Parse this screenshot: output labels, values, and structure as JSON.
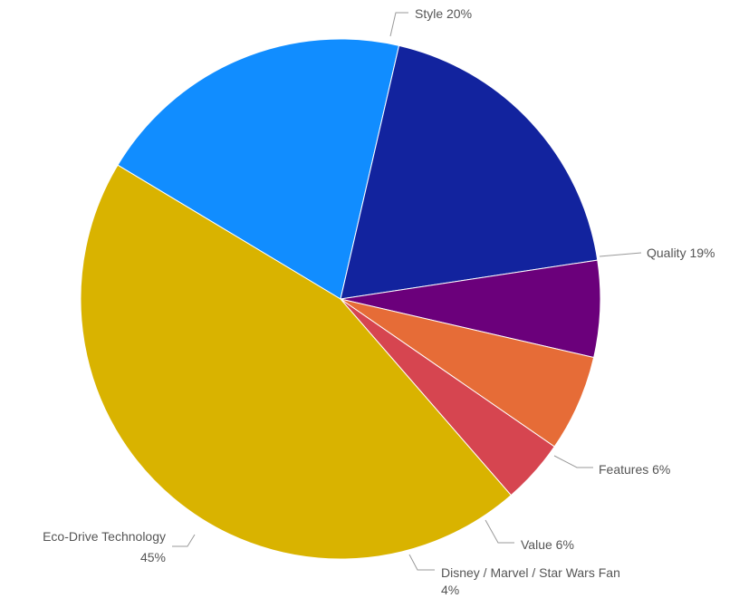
{
  "chart_data": {
    "type": "pie",
    "slices": [
      {
        "label": "Style",
        "value": 20,
        "value_text": "20%",
        "color": "#118DFF"
      },
      {
        "label": "Quality",
        "value": 19,
        "value_text": "19%",
        "color": "#12239E"
      },
      {
        "label": "Features",
        "value": 6,
        "value_text": "6%",
        "color": "#6B007B"
      },
      {
        "label": "Value",
        "value": 6,
        "value_text": "6%",
        "color": "#E66C37"
      },
      {
        "label": "Disney / Marvel / Star Wars Fan",
        "value": 4,
        "value_text": "4%",
        "color": "#D64550"
      },
      {
        "label": "Eco-Drive Technology",
        "value": 45,
        "value_text": "45%",
        "color": "#D9B300"
      }
    ],
    "legend": "none",
    "data_labels": "outside"
  }
}
